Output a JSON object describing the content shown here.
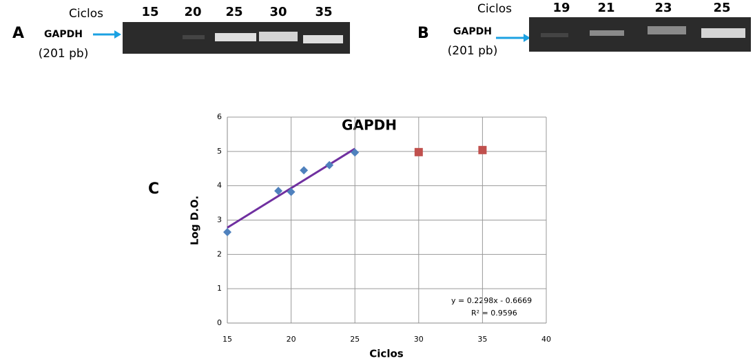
{
  "panels": {
    "a": {
      "letter": "A",
      "cycles_label": "Ciclos",
      "lanes": [
        "15",
        "20",
        "25",
        "30",
        "35"
      ],
      "gene": "GAPDH",
      "size": "(201 pb)"
    },
    "b": {
      "letter": "B",
      "cycles_label": "Ciclos",
      "lanes": [
        "19",
        "21",
        "23",
        "25"
      ],
      "gene": "GAPDH",
      "size": "(201 pb)"
    },
    "c": {
      "letter": "C"
    }
  },
  "chart_data": {
    "type": "scatter",
    "title": "GAPDH",
    "x_label": "Ciclos",
    "y_label": "Log D.O.",
    "xlim": [
      15,
      40
    ],
    "ylim": [
      0,
      6
    ],
    "xticks": [
      15,
      20,
      25,
      30,
      35,
      40
    ],
    "yticks": [
      0,
      1,
      2,
      3,
      4,
      5,
      6
    ],
    "grid": true,
    "series": [
      {
        "color": "#4f81bd",
        "marker": "diamond",
        "x": [
          15,
          19,
          20,
          21,
          23,
          25
        ],
        "values": [
          2.65,
          3.85,
          3.82,
          4.45,
          4.6,
          4.97
        ]
      },
      {
        "color": "#c0504d",
        "marker": "square",
        "x": [
          30,
          35
        ],
        "values": [
          4.98,
          5.04
        ]
      },
      {
        "color": "#7030a0",
        "marker": "line",
        "x": [
          15,
          25
        ],
        "values": [
          2.78,
          5.08
        ]
      }
    ],
    "annotations": [
      "y = 0.2298x - 0.6669",
      "R² = 0.9596"
    ]
  }
}
